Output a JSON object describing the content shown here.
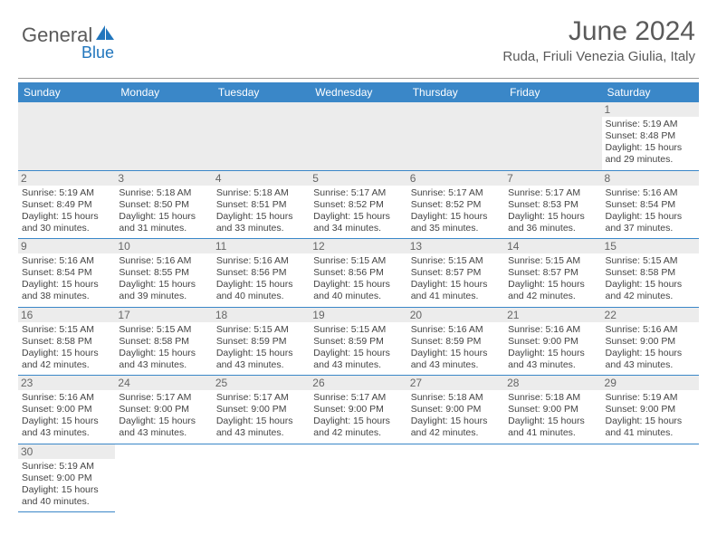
{
  "logo": {
    "text1": "General",
    "text2": "Blue"
  },
  "title": "June 2024",
  "location": "Ruda, Friuli Venezia Giulia, Italy",
  "colors": {
    "header_bg": "#3a87c8",
    "header_text": "#ffffff",
    "daynum_bg": "#ececec",
    "cell_border": "#3a87c8",
    "logo_gray": "#5a5a5a",
    "logo_blue": "#2176bd"
  },
  "columns": [
    "Sunday",
    "Monday",
    "Tuesday",
    "Wednesday",
    "Thursday",
    "Friday",
    "Saturday"
  ],
  "weeks": [
    [
      null,
      null,
      null,
      null,
      null,
      null,
      {
        "n": "1",
        "rise": "5:19 AM",
        "set": "8:48 PM",
        "dl": "15 hours and 29 minutes."
      }
    ],
    [
      {
        "n": "2",
        "rise": "5:19 AM",
        "set": "8:49 PM",
        "dl": "15 hours and 30 minutes."
      },
      {
        "n": "3",
        "rise": "5:18 AM",
        "set": "8:50 PM",
        "dl": "15 hours and 31 minutes."
      },
      {
        "n": "4",
        "rise": "5:18 AM",
        "set": "8:51 PM",
        "dl": "15 hours and 33 minutes."
      },
      {
        "n": "5",
        "rise": "5:17 AM",
        "set": "8:52 PM",
        "dl": "15 hours and 34 minutes."
      },
      {
        "n": "6",
        "rise": "5:17 AM",
        "set": "8:52 PM",
        "dl": "15 hours and 35 minutes."
      },
      {
        "n": "7",
        "rise": "5:17 AM",
        "set": "8:53 PM",
        "dl": "15 hours and 36 minutes."
      },
      {
        "n": "8",
        "rise": "5:16 AM",
        "set": "8:54 PM",
        "dl": "15 hours and 37 minutes."
      }
    ],
    [
      {
        "n": "9",
        "rise": "5:16 AM",
        "set": "8:54 PM",
        "dl": "15 hours and 38 minutes."
      },
      {
        "n": "10",
        "rise": "5:16 AM",
        "set": "8:55 PM",
        "dl": "15 hours and 39 minutes."
      },
      {
        "n": "11",
        "rise": "5:16 AM",
        "set": "8:56 PM",
        "dl": "15 hours and 40 minutes."
      },
      {
        "n": "12",
        "rise": "5:15 AM",
        "set": "8:56 PM",
        "dl": "15 hours and 40 minutes."
      },
      {
        "n": "13",
        "rise": "5:15 AM",
        "set": "8:57 PM",
        "dl": "15 hours and 41 minutes."
      },
      {
        "n": "14",
        "rise": "5:15 AM",
        "set": "8:57 PM",
        "dl": "15 hours and 42 minutes."
      },
      {
        "n": "15",
        "rise": "5:15 AM",
        "set": "8:58 PM",
        "dl": "15 hours and 42 minutes."
      }
    ],
    [
      {
        "n": "16",
        "rise": "5:15 AM",
        "set": "8:58 PM",
        "dl": "15 hours and 42 minutes."
      },
      {
        "n": "17",
        "rise": "5:15 AM",
        "set": "8:58 PM",
        "dl": "15 hours and 43 minutes."
      },
      {
        "n": "18",
        "rise": "5:15 AM",
        "set": "8:59 PM",
        "dl": "15 hours and 43 minutes."
      },
      {
        "n": "19",
        "rise": "5:15 AM",
        "set": "8:59 PM",
        "dl": "15 hours and 43 minutes."
      },
      {
        "n": "20",
        "rise": "5:16 AM",
        "set": "8:59 PM",
        "dl": "15 hours and 43 minutes."
      },
      {
        "n": "21",
        "rise": "5:16 AM",
        "set": "9:00 PM",
        "dl": "15 hours and 43 minutes."
      },
      {
        "n": "22",
        "rise": "5:16 AM",
        "set": "9:00 PM",
        "dl": "15 hours and 43 minutes."
      }
    ],
    [
      {
        "n": "23",
        "rise": "5:16 AM",
        "set": "9:00 PM",
        "dl": "15 hours and 43 minutes."
      },
      {
        "n": "24",
        "rise": "5:17 AM",
        "set": "9:00 PM",
        "dl": "15 hours and 43 minutes."
      },
      {
        "n": "25",
        "rise": "5:17 AM",
        "set": "9:00 PM",
        "dl": "15 hours and 43 minutes."
      },
      {
        "n": "26",
        "rise": "5:17 AM",
        "set": "9:00 PM",
        "dl": "15 hours and 42 minutes."
      },
      {
        "n": "27",
        "rise": "5:18 AM",
        "set": "9:00 PM",
        "dl": "15 hours and 42 minutes."
      },
      {
        "n": "28",
        "rise": "5:18 AM",
        "set": "9:00 PM",
        "dl": "15 hours and 41 minutes."
      },
      {
        "n": "29",
        "rise": "5:19 AM",
        "set": "9:00 PM",
        "dl": "15 hours and 41 minutes."
      }
    ],
    [
      {
        "n": "30",
        "rise": "5:19 AM",
        "set": "9:00 PM",
        "dl": "15 hours and 40 minutes."
      },
      null,
      null,
      null,
      null,
      null,
      null
    ]
  ],
  "labels": {
    "sunrise": "Sunrise:",
    "sunset": "Sunset:",
    "daylight": "Daylight:"
  }
}
